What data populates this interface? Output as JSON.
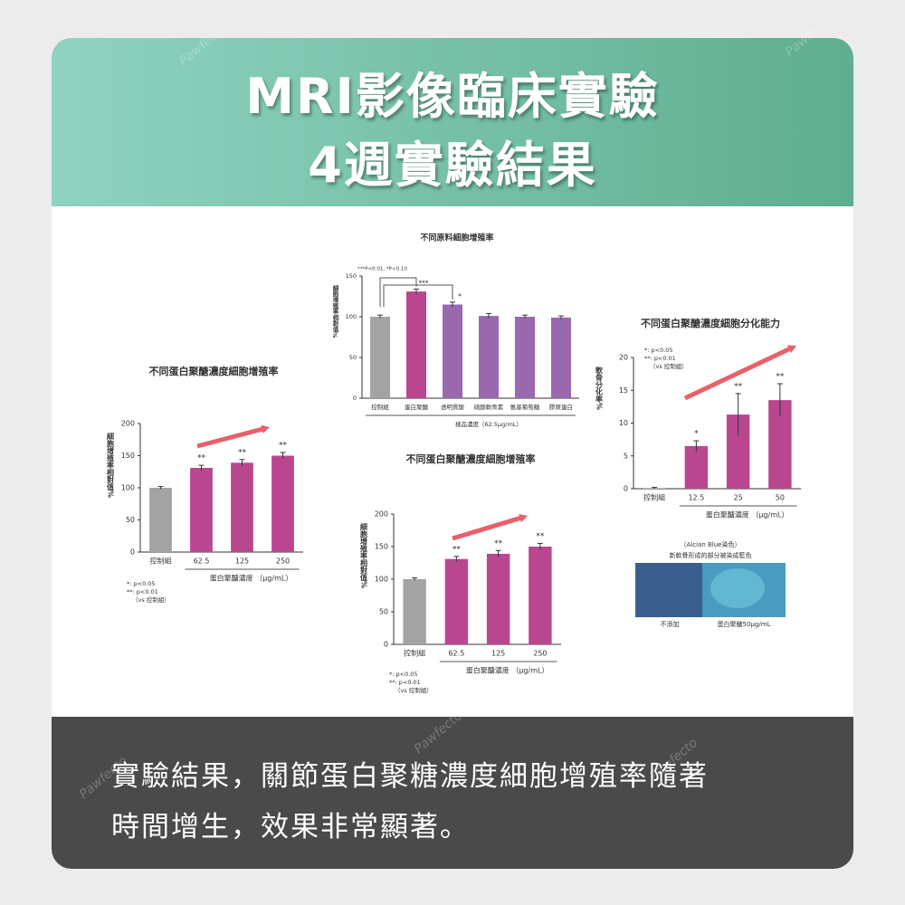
{
  "header": {
    "title_line1": "MRI影像臨床實驗",
    "title_line2": "4週實驗結果"
  },
  "footer": {
    "line1": "實驗結果，關節蛋白聚糖濃度細胞增殖率隨著",
    "line2": "時間增生，效果非常顯著。"
  },
  "watermark": "Pawfecto",
  "image_caption": {
    "stain": "（Alcian Blue染色）",
    "description": "新軟骨形成的部分被染成藍色",
    "left_label": "不添加",
    "right_label": "蛋白聚醣50μg/mL"
  },
  "chart_data": [
    {
      "type": "bar",
      "title": "不同原料細胞增殖率",
      "y_label": "細胞增殖率相對值%",
      "x_label": "樣品濃度（62.5μg/mL）",
      "annotation": "***P<0.01, *P<0.10",
      "categories": [
        "控制組",
        "蛋白聚醣",
        "透明質酸",
        "硫酸軟骨素",
        "氨基葡萄糖",
        "膠原蛋白"
      ],
      "values": [
        100,
        131,
        115,
        101,
        100,
        99
      ],
      "errors": [
        2,
        3,
        3,
        3,
        2,
        2
      ],
      "colors": [
        "#a3a3a3",
        "#b9478f",
        "#9a68ad",
        "#9a68ad",
        "#9a68ad",
        "#9a68ad"
      ],
      "significance": [
        null,
        "***",
        "*",
        null,
        null,
        null
      ],
      "ylim": [
        0,
        150
      ],
      "yticks": [
        0,
        50,
        100,
        150
      ]
    },
    {
      "type": "bar",
      "title": "不同蛋白聚醣濃度細胞增殖率",
      "y_label": "細胞增殖率相對值%",
      "x_label": "蛋白聚醣濃度 （μg/mL）",
      "categories": [
        "控制組",
        "62.5",
        "125",
        "250"
      ],
      "values": [
        100,
        131,
        139,
        150
      ],
      "errors": [
        2,
        4,
        5,
        5
      ],
      "colors": [
        "#a3a3a3",
        "#b9478f",
        "#b9478f",
        "#b9478f"
      ],
      "significance": [
        null,
        "**",
        "**",
        "**"
      ],
      "notes": [
        "*: p<0.05",
        "**: p<0.01",
        "（vs 控制組）"
      ],
      "ylim": [
        0,
        200
      ],
      "yticks": [
        0,
        50,
        100,
        150,
        200
      ]
    },
    {
      "type": "bar",
      "title": "不同蛋白聚醣濃度細胞增殖率",
      "y_label": "細胞增殖率相對值%",
      "x_label": "蛋白聚醣濃度 （μg/mL）",
      "categories": [
        "控制組",
        "62.5",
        "125",
        "250"
      ],
      "values": [
        100,
        131,
        139,
        150
      ],
      "errors": [
        2,
        4,
        5,
        5
      ],
      "colors": [
        "#a3a3a3",
        "#b9478f",
        "#b9478f",
        "#b9478f"
      ],
      "significance": [
        null,
        "**",
        "**",
        "**"
      ],
      "notes": [
        "*: p<0.05",
        "**: p<0.01",
        "（vs 控制組）"
      ],
      "ylim": [
        0,
        200
      ],
      "yticks": [
        0,
        50,
        100,
        150,
        200
      ]
    },
    {
      "type": "bar",
      "title": "不同蛋白聚醣濃度細胞分化能力",
      "y_label": "軟骨分化率%",
      "x_label": "蛋白聚醣濃度 （μg/mL）",
      "categories": [
        "控制組",
        "12.5",
        "25",
        "50"
      ],
      "values": [
        0.1,
        6.5,
        11.3,
        13.5
      ],
      "errors": [
        0.1,
        0.8,
        3.2,
        2.5
      ],
      "colors": [
        "#a3a3a3",
        "#b9478f",
        "#b9478f",
        "#b9478f"
      ],
      "significance": [
        null,
        "*",
        "**",
        "**"
      ],
      "notes": [
        "*: p<0.05",
        "**: p<0.01",
        "（vs 控制組）"
      ],
      "ylim": [
        0,
        20
      ],
      "yticks": [
        0,
        5,
        10,
        15,
        20
      ]
    }
  ]
}
